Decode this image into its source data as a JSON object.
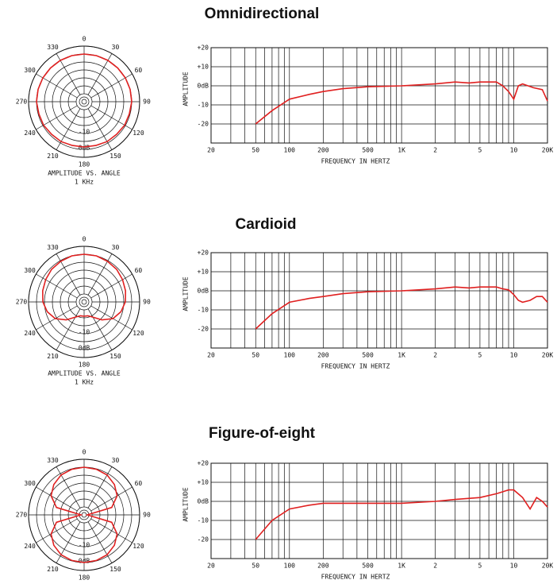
{
  "chart_data": [
    {
      "type": "polar",
      "theta": [
        0,
        15,
        30,
        45,
        60,
        75,
        90,
        105,
        120,
        135,
        150,
        165,
        180,
        195,
        210,
        225,
        240,
        255,
        270,
        285,
        300,
        315,
        330,
        345
      ],
      "r": [
        0,
        0,
        0,
        0,
        0,
        0,
        0,
        -0.5,
        -0.5,
        -1,
        -1,
        -1.5,
        -1.5,
        -1.5,
        -1,
        -1,
        -0.5,
        -0.5,
        0,
        0,
        0,
        0,
        0,
        0
      ],
      "color": "#e02020",
      "rlim": [
        -30,
        5
      ],
      "rgrid": [
        -25,
        -20,
        -15,
        -10,
        -5,
        0,
        5
      ],
      "rticks": [
        {
          "value": -10,
          "label": "-10"
        },
        {
          "value": 0,
          "label": "0dB"
        }
      ],
      "angle_ticks": [
        0,
        30,
        60,
        90,
        120,
        150,
        180,
        210,
        240,
        270,
        300,
        330
      ],
      "note": "AMPLITUDE VS. ANGLE",
      "frequency": "1 KHz"
    },
    {
      "type": "line",
      "title": "Omnidirectional",
      "xscale": "log",
      "x": [
        50,
        70,
        100,
        150,
        200,
        300,
        500,
        1000,
        2000,
        3000,
        4000,
        5000,
        7000,
        8000,
        9000,
        10000,
        11000,
        12000,
        15000,
        18000,
        20000
      ],
      "values": [
        -20,
        -13,
        -7,
        -4.5,
        -3,
        -1.5,
        -0.5,
        0,
        1,
        2,
        1.5,
        2,
        2,
        0,
        -3,
        -7,
        0,
        1,
        -1,
        -2,
        -8
      ],
      "color": "#e02020",
      "xlim": [
        20,
        20000
      ],
      "ylim": [
        -30,
        20
      ],
      "xticks": [
        20,
        50,
        100,
        200,
        500,
        {
          "value": 1000,
          "label": "1K"
        },
        {
          "value": 2000,
          "label": "2"
        },
        {
          "value": 5000,
          "label": "5"
        },
        {
          "value": 10000,
          "label": "10"
        },
        {
          "value": 20000,
          "label": "20K"
        }
      ],
      "xminor": [
        30,
        40,
        60,
        70,
        80,
        90,
        300,
        400,
        600,
        700,
        800,
        900,
        3000,
        4000,
        6000,
        7000,
        8000,
        9000
      ],
      "yticks": [
        {
          "value": 20,
          "label": "+20"
        },
        {
          "value": 10,
          "label": "+10"
        },
        {
          "value": 0,
          "label": "0dB"
        },
        {
          "value": -10,
          "label": "-10"
        },
        {
          "value": -20,
          "label": "-20"
        }
      ],
      "xlabel": "FREQUENCY IN HERTZ",
      "ylabel": "AMPLITUDE"
    },
    {
      "type": "polar",
      "theta": [
        0,
        15,
        30,
        45,
        60,
        75,
        90,
        105,
        120,
        135,
        150,
        165,
        180,
        195,
        210,
        225,
        240,
        255,
        270,
        285,
        300,
        315,
        330,
        345
      ],
      "r": [
        0,
        0,
        -0.5,
        -1,
        -2,
        -3,
        -4,
        -6,
        -9,
        -14,
        -19,
        -21,
        -21,
        -21,
        -19,
        -14,
        -9,
        -6,
        -4,
        -3,
        -2,
        -1,
        -0.5,
        0
      ],
      "color": "#e02020",
      "rlim": [
        -30,
        5
      ],
      "rgrid": [
        -25,
        -20,
        -15,
        -10,
        -5,
        0,
        5
      ],
      "rticks": [
        {
          "value": -10,
          "label": "-10"
        },
        {
          "value": 0,
          "label": "0dB"
        }
      ],
      "angle_ticks": [
        0,
        30,
        60,
        90,
        120,
        150,
        180,
        210,
        240,
        270,
        300,
        330
      ],
      "note": "AMPLITUDE VS. ANGLE",
      "frequency": "1 KHz"
    },
    {
      "type": "line",
      "title": "Cardioid",
      "xscale": "log",
      "x": [
        50,
        70,
        100,
        150,
        200,
        300,
        500,
        1000,
        2000,
        3000,
        4000,
        5000,
        7000,
        8000,
        9000,
        10000,
        11000,
        12000,
        14000,
        16000,
        18000,
        20000
      ],
      "values": [
        -20,
        -12,
        -6,
        -4,
        -3,
        -1.5,
        -0.5,
        0,
        1,
        2,
        1.5,
        2,
        2,
        1,
        0.5,
        -2,
        -5,
        -6,
        -5,
        -3,
        -3,
        -6
      ],
      "color": "#e02020",
      "xlim": [
        20,
        20000
      ],
      "ylim": [
        -30,
        20
      ],
      "xticks": [
        20,
        50,
        100,
        200,
        500,
        {
          "value": 1000,
          "label": "1K"
        },
        {
          "value": 2000,
          "label": "2"
        },
        {
          "value": 5000,
          "label": "5"
        },
        {
          "value": 10000,
          "label": "10"
        },
        {
          "value": 20000,
          "label": "20K"
        }
      ],
      "xminor": [
        30,
        40,
        60,
        70,
        80,
        90,
        300,
        400,
        600,
        700,
        800,
        900,
        3000,
        4000,
        6000,
        7000,
        8000,
        9000
      ],
      "yticks": [
        {
          "value": 20,
          "label": "+20"
        },
        {
          "value": 10,
          "label": "+10"
        },
        {
          "value": 0,
          "label": "0dB"
        },
        {
          "value": -10,
          "label": "-10"
        },
        {
          "value": -20,
          "label": "-20"
        }
      ],
      "xlabel": "FREQUENCY IN HERTZ",
      "ylabel": "AMPLITUDE"
    },
    {
      "type": "polar",
      "theta": [
        0,
        15,
        30,
        45,
        60,
        75,
        90,
        105,
        120,
        135,
        150,
        165,
        180,
        195,
        210,
        225,
        240,
        255,
        270,
        285,
        300,
        315,
        330,
        345
      ],
      "r": [
        0,
        -0.3,
        -1,
        -3,
        -6,
        -12,
        -28,
        -12,
        -6,
        -3,
        -1,
        -0.3,
        0,
        -0.3,
        -1,
        -3,
        -6,
        -12,
        -28,
        -12,
        -6,
        -3,
        -1,
        -0.3
      ],
      "color": "#e02020",
      "rlim": [
        -30,
        5
      ],
      "rgrid": [
        -25,
        -20,
        -15,
        -10,
        -5,
        0,
        5
      ],
      "rticks": [
        {
          "value": -10,
          "label": "-10"
        },
        {
          "value": 0,
          "label": "0dB"
        }
      ],
      "angle_ticks": [
        0,
        30,
        60,
        90,
        120,
        150,
        180,
        210,
        240,
        270,
        300,
        330
      ]
    },
    {
      "type": "line",
      "title": "Figure-of-eight",
      "xscale": "log",
      "x": [
        50,
        70,
        100,
        150,
        200,
        500,
        1000,
        2000,
        3000,
        5000,
        7000,
        9000,
        10000,
        12000,
        14000,
        16000,
        18000,
        20000
      ],
      "values": [
        -20,
        -10,
        -4,
        -2,
        -1,
        -1,
        -1,
        0,
        1,
        2,
        4,
        6,
        6,
        2,
        -4,
        2,
        0,
        -3
      ],
      "color": "#e02020",
      "xlim": [
        20,
        20000
      ],
      "ylim": [
        -30,
        20
      ],
      "xticks": [
        20,
        50,
        100,
        200,
        500,
        {
          "value": 1000,
          "label": "1K"
        },
        {
          "value": 2000,
          "label": "2"
        },
        {
          "value": 5000,
          "label": "5"
        },
        {
          "value": 10000,
          "label": "10"
        },
        {
          "value": 20000,
          "label": "20K"
        }
      ],
      "xminor": [
        30,
        40,
        60,
        70,
        80,
        90,
        300,
        400,
        600,
        700,
        800,
        900,
        3000,
        4000,
        6000,
        7000,
        8000,
        9000
      ],
      "yticks": [
        {
          "value": 20,
          "label": "+20"
        },
        {
          "value": 10,
          "label": "+10"
        },
        {
          "value": 0,
          "label": "0dB"
        },
        {
          "value": -10,
          "label": "-10"
        },
        {
          "value": -20,
          "label": "-20"
        }
      ],
      "xlabel": "FREQUENCY IN HERTZ",
      "ylabel": "AMPLITUDE"
    }
  ]
}
